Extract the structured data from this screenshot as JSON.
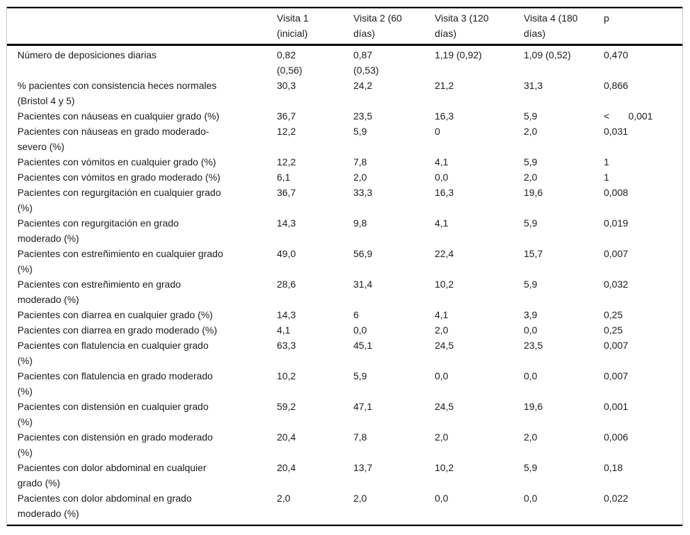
{
  "table": {
    "corner_label": "",
    "columns": [
      {
        "label": "Visita 1\n(inicial)"
      },
      {
        "label": "Visita 2 (60\ndías)"
      },
      {
        "label": "Visita 3 (120\ndías)"
      },
      {
        "label": "Visita 4 (180\ndías)"
      },
      {
        "label": "p"
      }
    ],
    "rows": [
      {
        "label": "Número de deposiciones diarias",
        "values": [
          "0,82\n(0,56)",
          "0,87\n(0,53)",
          "1,19 (0,92)",
          "1,09 (0,52)",
          "0,470"
        ]
      },
      {
        "label": "% pacientes con consistencia heces normales\n(Bristol 4 y 5)",
        "values": [
          "30,3",
          "24,2",
          "21,2",
          "31,3",
          "0,866"
        ]
      },
      {
        "label": "Pacientes con náuseas en cualquier grado (%)",
        "values": [
          "36,7",
          "23,5",
          "16,3",
          "5,9",
          "<       0,001"
        ]
      },
      {
        "label": "Pacientes con náuseas en grado moderado-\nsevero (%)",
        "values": [
          "12,2",
          "5,9",
          "0",
          "2,0",
          "0,031"
        ]
      },
      {
        "label": "Pacientes con vómitos en cualquier grado (%)",
        "values": [
          "12,2",
          "7,8",
          "4,1",
          "5,9",
          "1"
        ]
      },
      {
        "label": "Pacientes con vómitos en grado moderado (%)",
        "values": [
          "6,1",
          "2,0",
          "0,0",
          "2,0",
          "1"
        ]
      },
      {
        "label": "Pacientes con regurgitación en cualquier grado\n(%)",
        "values": [
          "36,7",
          "33,3",
          "16,3",
          "19,6",
          "0,008"
        ]
      },
      {
        "label": "Pacientes con regurgitación en grado\nmoderado (%)",
        "values": [
          "14,3",
          "9,8",
          "4,1",
          "5,9",
          "0,019"
        ]
      },
      {
        "label": "Pacientes con estreñimiento en cualquier grado\n(%)",
        "values": [
          "49,0",
          "56,9",
          "22,4",
          "15,7",
          "0,007"
        ]
      },
      {
        "label": "Pacientes con estreñimiento en grado\nmoderado (%)",
        "values": [
          "28,6",
          "31,4",
          "10,2",
          "5,9",
          "0,032"
        ]
      },
      {
        "label": "Pacientes con diarrea en cualquier grado (%)",
        "values": [
          "14,3",
          "6",
          "4,1",
          "3,9",
          "0,25"
        ]
      },
      {
        "label": "Pacientes con diarrea en grado moderado (%)",
        "values": [
          "4,1",
          "0,0",
          "2,0",
          "0,0",
          "0,25"
        ]
      },
      {
        "label": "Pacientes con flatulencia en cualquier grado\n(%)",
        "values": [
          "63,3",
          "45,1",
          "24,5",
          "23,5",
          "0,007"
        ]
      },
      {
        "label": "Pacientes con flatulencia en grado moderado\n(%)",
        "values": [
          "10,2",
          "5,9",
          "0,0",
          "0,0",
          "0,007"
        ]
      },
      {
        "label": "Pacientes con distensión en cualquier grado\n(%)",
        "values": [
          "59,2",
          "47,1",
          "24,5",
          "19,6",
          "0,001"
        ]
      },
      {
        "label": "Pacientes con distensión en grado moderado\n(%)",
        "values": [
          "20,4",
          "7,8",
          "2,0",
          "2,0",
          "0,006"
        ]
      },
      {
        "label": "Pacientes con dolor abdominal en cualquier\ngrado (%)",
        "values": [
          "20,4",
          "13,7",
          "10,2",
          "5,9",
          "0,18"
        ]
      },
      {
        "label": "Pacientes con dolor abdominal en grado\nmoderado (%)",
        "values": [
          "2,0",
          "2,0",
          "0,0",
          "0,0",
          "0,022"
        ]
      }
    ]
  }
}
